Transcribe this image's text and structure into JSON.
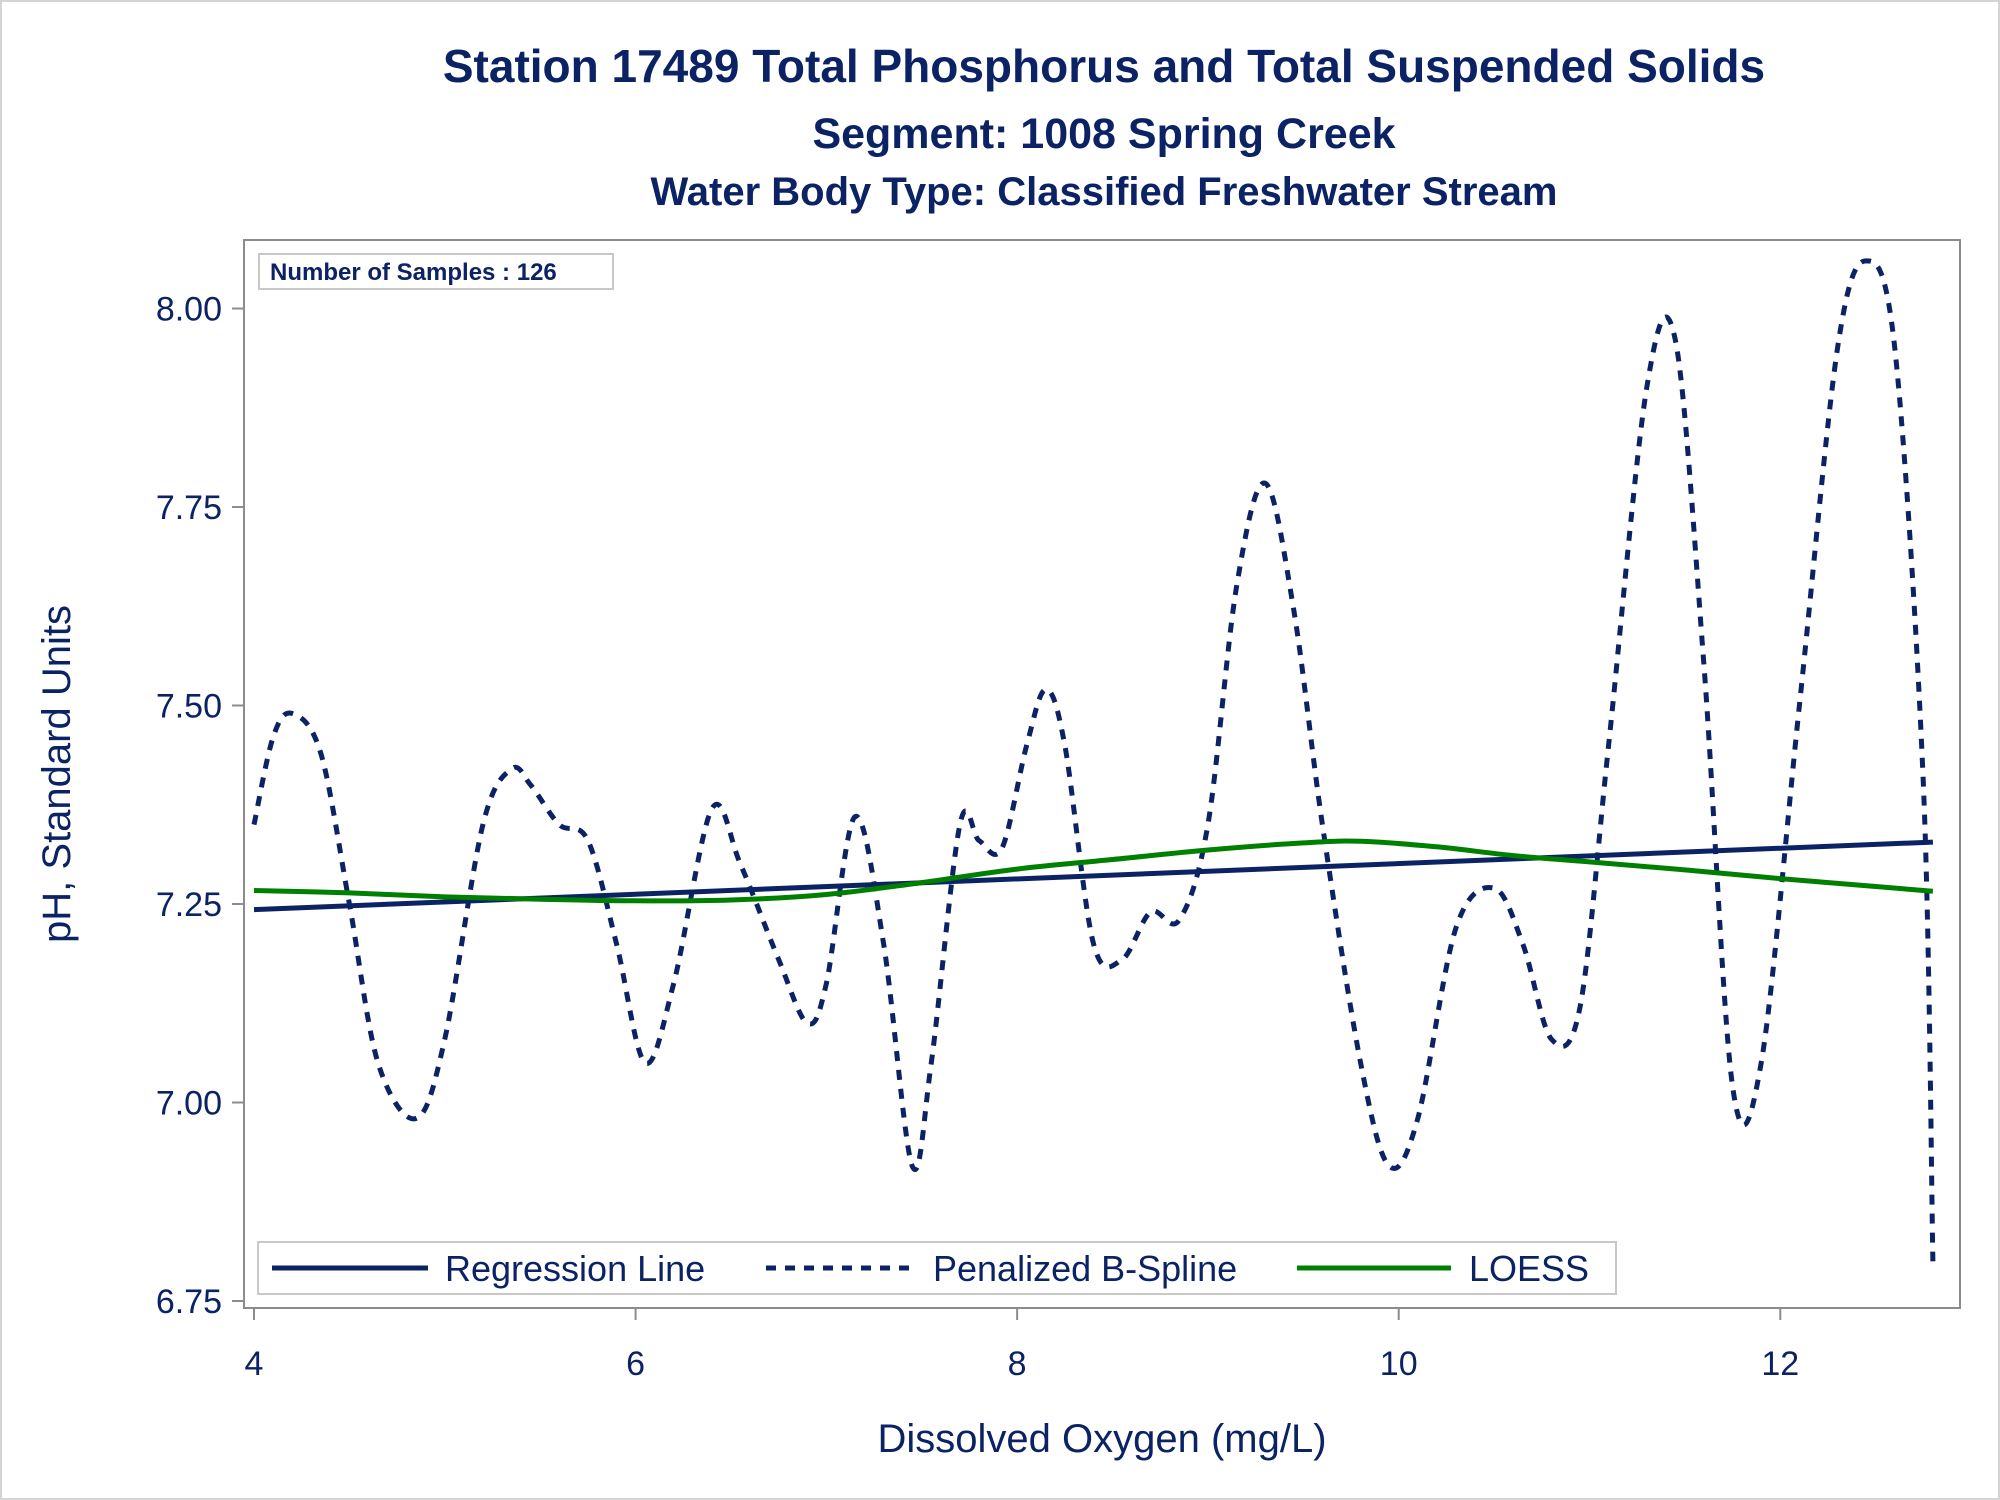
{
  "chart_data": {
    "type": "line",
    "title": "Station 17489  Total Phosphorus and Total Suspended Solids",
    "subtitle": "Segment: 1008  Spring Creek",
    "subtitle2": "Water Body Type: Classified Freshwater Stream",
    "xlabel": "Dissolved Oxygen (mg/L)",
    "ylabel": "pH, Standard Units",
    "xlim": [
      4,
      12.9
    ],
    "ylim": [
      6.75,
      8.08
    ],
    "x_ticks": [
      "4",
      "6",
      "8",
      "10",
      "12"
    ],
    "x_tick_values": [
      4,
      6,
      8,
      10,
      12
    ],
    "y_ticks": [
      "6.75",
      "7.00",
      "7.25",
      "7.50",
      "7.75",
      "8.00"
    ],
    "y_tick_values": [
      6.75,
      7.0,
      7.25,
      7.5,
      7.75,
      8.0
    ],
    "annotation": "Number of Samples : 126",
    "grid": false,
    "legend_position": "bottom-inside",
    "series": [
      {
        "name": "Regression Line",
        "style": "solid",
        "color": "#0b2265",
        "x": [
          4.0,
          12.8
        ],
        "y": [
          7.243,
          7.328
        ]
      },
      {
        "name": "Penalized B-Spline",
        "style": "dashed",
        "color": "#0b2265",
        "x": [
          4.0,
          4.1,
          4.2,
          4.35,
          4.5,
          4.65,
          4.85,
          5.0,
          5.2,
          5.35,
          5.45,
          5.6,
          5.75,
          5.9,
          6.05,
          6.2,
          6.4,
          6.55,
          6.75,
          6.9,
          7.0,
          7.15,
          7.3,
          7.45,
          7.55,
          7.7,
          7.8,
          7.92,
          8.05,
          8.15,
          8.25,
          8.4,
          8.55,
          8.7,
          8.85,
          9.0,
          9.15,
          9.3,
          9.45,
          9.6,
          9.8,
          9.95,
          10.1,
          10.3,
          10.5,
          10.65,
          10.8,
          10.95,
          11.1,
          11.3,
          11.45,
          11.6,
          11.75,
          11.9,
          12.1,
          12.3,
          12.45,
          12.6,
          12.75,
          12.8
        ],
        "y": [
          7.35,
          7.46,
          7.49,
          7.44,
          7.25,
          7.05,
          6.98,
          7.08,
          7.35,
          7.42,
          7.4,
          7.35,
          7.33,
          7.2,
          7.05,
          7.15,
          7.37,
          7.3,
          7.18,
          7.1,
          7.15,
          7.36,
          7.2,
          6.92,
          7.05,
          7.35,
          7.33,
          7.32,
          7.45,
          7.52,
          7.45,
          7.2,
          7.18,
          7.24,
          7.23,
          7.35,
          7.65,
          7.78,
          7.62,
          7.35,
          7.05,
          6.92,
          6.98,
          7.22,
          7.27,
          7.2,
          7.08,
          7.12,
          7.45,
          7.9,
          7.96,
          7.55,
          7.02,
          7.05,
          7.5,
          7.95,
          8.06,
          7.95,
          7.4,
          6.8
        ]
      },
      {
        "name": "LOESS",
        "style": "solid",
        "color": "#008000",
        "x": [
          4.0,
          4.5,
          5.0,
          5.5,
          6.0,
          6.5,
          7.0,
          7.5,
          8.0,
          8.5,
          9.0,
          9.5,
          9.8,
          10.2,
          10.6,
          11.0,
          11.5,
          12.0,
          12.5,
          12.8
        ],
        "y": [
          7.267,
          7.264,
          7.259,
          7.256,
          7.254,
          7.255,
          7.262,
          7.277,
          7.294,
          7.306,
          7.318,
          7.327,
          7.329,
          7.322,
          7.311,
          7.303,
          7.293,
          7.282,
          7.272,
          7.266
        ]
      }
    ]
  }
}
